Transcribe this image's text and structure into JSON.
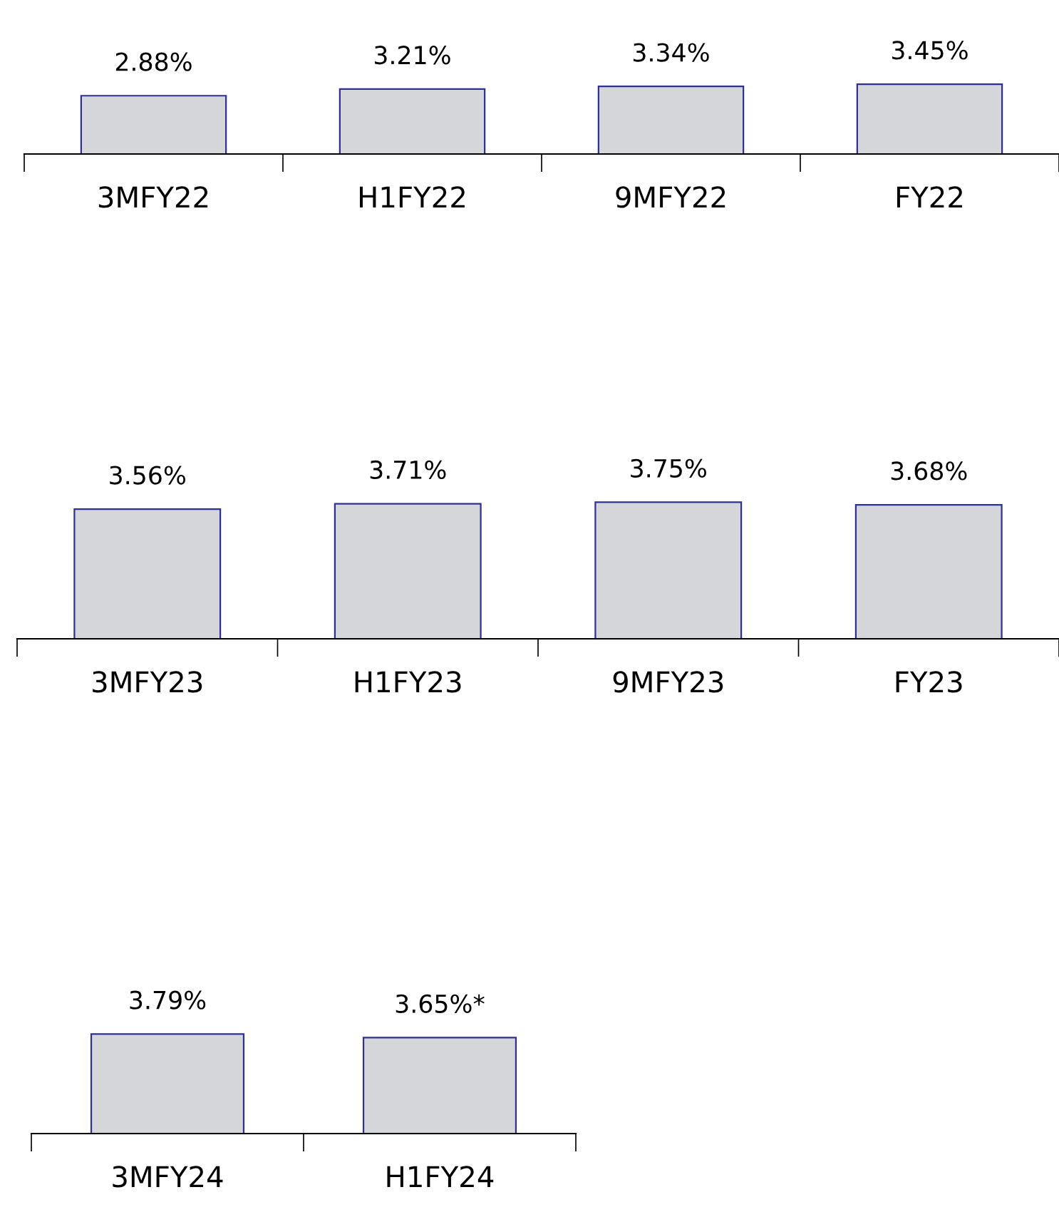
{
  "chart_data": [
    {
      "type": "bar",
      "categories": [
        "3MFY22",
        "H1FY22",
        "9MFY22",
        "FY22"
      ],
      "values": [
        2.88,
        3.21,
        3.34,
        3.45
      ],
      "value_labels": [
        "2.88%",
        "3.21%",
        "3.34%",
        "3.45%"
      ],
      "color": "#d5d6da",
      "grid": false,
      "legend": false,
      "tick_labels": "x"
    },
    {
      "type": "bar",
      "categories": [
        "3MFY23",
        "H1FY23",
        "9MFY23",
        "FY23"
      ],
      "values": [
        3.56,
        3.71,
        3.75,
        3.68
      ],
      "value_labels": [
        "3.56%",
        "3.71%",
        "3.75%",
        "3.68%"
      ],
      "color": "#d5d6da",
      "grid": false,
      "legend": false,
      "tick_labels": "x"
    },
    {
      "type": "bar",
      "categories": [
        "3MFY24",
        "H1FY24"
      ],
      "values": [
        3.79,
        3.65
      ],
      "value_labels": [
        "3.79%",
        "3.65%*"
      ],
      "color": "#d5d6da",
      "grid": false,
      "legend": false,
      "tick_labels": "x"
    }
  ]
}
